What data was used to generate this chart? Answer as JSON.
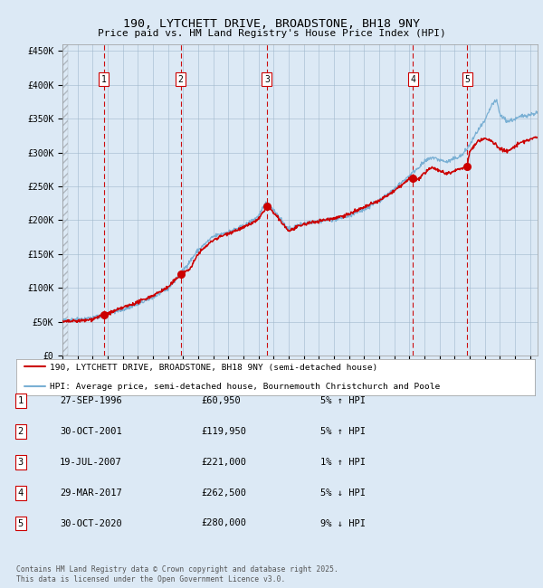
{
  "title": "190, LYTCHETT DRIVE, BROADSTONE, BH18 9NY",
  "subtitle": "Price paid vs. HM Land Registry's House Price Index (HPI)",
  "background_color": "#dce9f5",
  "plot_bg_color": "#dce9f5",
  "ylim": [
    0,
    460000
  ],
  "yticks": [
    0,
    50000,
    100000,
    150000,
    200000,
    250000,
    300000,
    350000,
    400000,
    450000
  ],
  "ytick_labels": [
    "£0",
    "£50K",
    "£100K",
    "£150K",
    "£200K",
    "£250K",
    "£300K",
    "£350K",
    "£400K",
    "£450K"
  ],
  "sale_dates_x": [
    1996.747,
    2001.831,
    2007.548,
    2017.247,
    2020.831
  ],
  "sale_prices": [
    60950,
    119950,
    221000,
    262500,
    280000
  ],
  "sale_labels": [
    "1",
    "2",
    "3",
    "4",
    "5"
  ],
  "vline_color": "#cc0000",
  "sale_marker_color": "#cc0000",
  "hpi_line_color": "#7ab0d4",
  "price_line_color": "#cc0000",
  "legend_entries": [
    "190, LYTCHETT DRIVE, BROADSTONE, BH18 9NY (semi-detached house)",
    "HPI: Average price, semi-detached house, Bournemouth Christchurch and Poole"
  ],
  "table_data": [
    [
      "1",
      "27-SEP-1996",
      "£60,950",
      "5% ↑ HPI"
    ],
    [
      "2",
      "30-OCT-2001",
      "£119,950",
      "5% ↑ HPI"
    ],
    [
      "3",
      "19-JUL-2007",
      "£221,000",
      "1% ↑ HPI"
    ],
    [
      "4",
      "29-MAR-2017",
      "£262,500",
      "5% ↓ HPI"
    ],
    [
      "5",
      "30-OCT-2020",
      "£280,000",
      "9% ↓ HPI"
    ]
  ],
  "footer": "Contains HM Land Registry data © Crown copyright and database right 2025.\nThis data is licensed under the Open Government Licence v3.0.",
  "xmin": 1994.0,
  "xmax": 2025.5
}
